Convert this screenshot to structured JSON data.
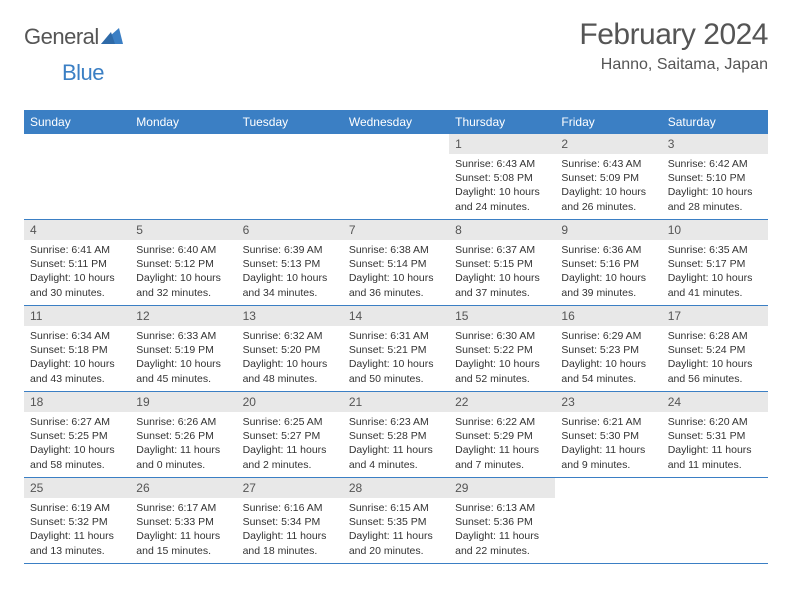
{
  "logo": {
    "word1": "General",
    "word2": "Blue"
  },
  "title": "February 2024",
  "subtitle": "Hanno, Saitama, Japan",
  "colors": {
    "header_bg": "#3b7fc4",
    "header_text": "#ffffff",
    "daynum_bg": "#e8e8e8",
    "border": "#3b7fc4",
    "body_text": "#333333",
    "title_text": "#555555"
  },
  "dayHeaders": [
    "Sunday",
    "Monday",
    "Tuesday",
    "Wednesday",
    "Thursday",
    "Friday",
    "Saturday"
  ],
  "weeks": [
    [
      {
        "num": "",
        "lines": []
      },
      {
        "num": "",
        "lines": []
      },
      {
        "num": "",
        "lines": []
      },
      {
        "num": "",
        "lines": []
      },
      {
        "num": "1",
        "lines": [
          "Sunrise: 6:43 AM",
          "Sunset: 5:08 PM",
          "Daylight: 10 hours and 24 minutes."
        ]
      },
      {
        "num": "2",
        "lines": [
          "Sunrise: 6:43 AM",
          "Sunset: 5:09 PM",
          "Daylight: 10 hours and 26 minutes."
        ]
      },
      {
        "num": "3",
        "lines": [
          "Sunrise: 6:42 AM",
          "Sunset: 5:10 PM",
          "Daylight: 10 hours and 28 minutes."
        ]
      }
    ],
    [
      {
        "num": "4",
        "lines": [
          "Sunrise: 6:41 AM",
          "Sunset: 5:11 PM",
          "Daylight: 10 hours and 30 minutes."
        ]
      },
      {
        "num": "5",
        "lines": [
          "Sunrise: 6:40 AM",
          "Sunset: 5:12 PM",
          "Daylight: 10 hours and 32 minutes."
        ]
      },
      {
        "num": "6",
        "lines": [
          "Sunrise: 6:39 AM",
          "Sunset: 5:13 PM",
          "Daylight: 10 hours and 34 minutes."
        ]
      },
      {
        "num": "7",
        "lines": [
          "Sunrise: 6:38 AM",
          "Sunset: 5:14 PM",
          "Daylight: 10 hours and 36 minutes."
        ]
      },
      {
        "num": "8",
        "lines": [
          "Sunrise: 6:37 AM",
          "Sunset: 5:15 PM",
          "Daylight: 10 hours and 37 minutes."
        ]
      },
      {
        "num": "9",
        "lines": [
          "Sunrise: 6:36 AM",
          "Sunset: 5:16 PM",
          "Daylight: 10 hours and 39 minutes."
        ]
      },
      {
        "num": "10",
        "lines": [
          "Sunrise: 6:35 AM",
          "Sunset: 5:17 PM",
          "Daylight: 10 hours and 41 minutes."
        ]
      }
    ],
    [
      {
        "num": "11",
        "lines": [
          "Sunrise: 6:34 AM",
          "Sunset: 5:18 PM",
          "Daylight: 10 hours and 43 minutes."
        ]
      },
      {
        "num": "12",
        "lines": [
          "Sunrise: 6:33 AM",
          "Sunset: 5:19 PM",
          "Daylight: 10 hours and 45 minutes."
        ]
      },
      {
        "num": "13",
        "lines": [
          "Sunrise: 6:32 AM",
          "Sunset: 5:20 PM",
          "Daylight: 10 hours and 48 minutes."
        ]
      },
      {
        "num": "14",
        "lines": [
          "Sunrise: 6:31 AM",
          "Sunset: 5:21 PM",
          "Daylight: 10 hours and 50 minutes."
        ]
      },
      {
        "num": "15",
        "lines": [
          "Sunrise: 6:30 AM",
          "Sunset: 5:22 PM",
          "Daylight: 10 hours and 52 minutes."
        ]
      },
      {
        "num": "16",
        "lines": [
          "Sunrise: 6:29 AM",
          "Sunset: 5:23 PM",
          "Daylight: 10 hours and 54 minutes."
        ]
      },
      {
        "num": "17",
        "lines": [
          "Sunrise: 6:28 AM",
          "Sunset: 5:24 PM",
          "Daylight: 10 hours and 56 minutes."
        ]
      }
    ],
    [
      {
        "num": "18",
        "lines": [
          "Sunrise: 6:27 AM",
          "Sunset: 5:25 PM",
          "Daylight: 10 hours and 58 minutes."
        ]
      },
      {
        "num": "19",
        "lines": [
          "Sunrise: 6:26 AM",
          "Sunset: 5:26 PM",
          "Daylight: 11 hours and 0 minutes."
        ]
      },
      {
        "num": "20",
        "lines": [
          "Sunrise: 6:25 AM",
          "Sunset: 5:27 PM",
          "Daylight: 11 hours and 2 minutes."
        ]
      },
      {
        "num": "21",
        "lines": [
          "Sunrise: 6:23 AM",
          "Sunset: 5:28 PM",
          "Daylight: 11 hours and 4 minutes."
        ]
      },
      {
        "num": "22",
        "lines": [
          "Sunrise: 6:22 AM",
          "Sunset: 5:29 PM",
          "Daylight: 11 hours and 7 minutes."
        ]
      },
      {
        "num": "23",
        "lines": [
          "Sunrise: 6:21 AM",
          "Sunset: 5:30 PM",
          "Daylight: 11 hours and 9 minutes."
        ]
      },
      {
        "num": "24",
        "lines": [
          "Sunrise: 6:20 AM",
          "Sunset: 5:31 PM",
          "Daylight: 11 hours and 11 minutes."
        ]
      }
    ],
    [
      {
        "num": "25",
        "lines": [
          "Sunrise: 6:19 AM",
          "Sunset: 5:32 PM",
          "Daylight: 11 hours and 13 minutes."
        ]
      },
      {
        "num": "26",
        "lines": [
          "Sunrise: 6:17 AM",
          "Sunset: 5:33 PM",
          "Daylight: 11 hours and 15 minutes."
        ]
      },
      {
        "num": "27",
        "lines": [
          "Sunrise: 6:16 AM",
          "Sunset: 5:34 PM",
          "Daylight: 11 hours and 18 minutes."
        ]
      },
      {
        "num": "28",
        "lines": [
          "Sunrise: 6:15 AM",
          "Sunset: 5:35 PM",
          "Daylight: 11 hours and 20 minutes."
        ]
      },
      {
        "num": "29",
        "lines": [
          "Sunrise: 6:13 AM",
          "Sunset: 5:36 PM",
          "Daylight: 11 hours and 22 minutes."
        ]
      },
      {
        "num": "",
        "lines": []
      },
      {
        "num": "",
        "lines": []
      }
    ]
  ]
}
